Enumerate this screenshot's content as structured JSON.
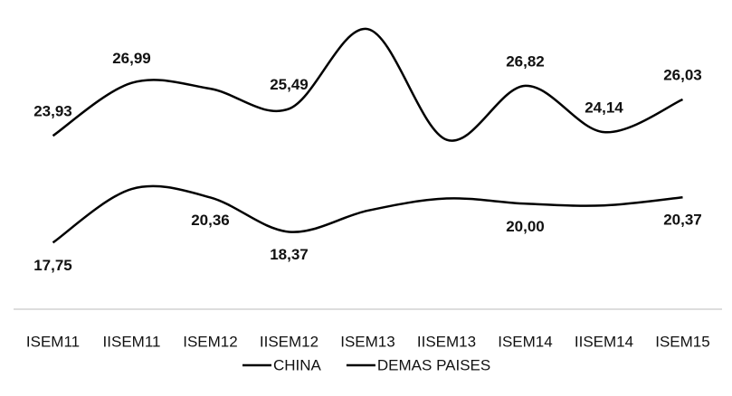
{
  "chart_data": {
    "type": "line",
    "categories": [
      "ISEM11",
      "IISEM11",
      "ISEM12",
      "IISEM12",
      "ISEM13",
      "IISEM13",
      "ISEM14",
      "IISEM14",
      "ISEM15"
    ],
    "series": [
      {
        "name": "CHINA",
        "color": "#000000",
        "values": [
          23.93,
          26.99,
          26.65,
          25.49,
          30.1,
          23.7,
          26.82,
          24.14,
          26.03
        ],
        "value_labels": [
          "23,93",
          "26,99",
          null,
          "25,49",
          null,
          null,
          "26,82",
          "24,14",
          "26,03"
        ]
      },
      {
        "name": "DEMAS PAISES",
        "color": "#000000",
        "values": [
          17.75,
          20.85,
          20.36,
          18.37,
          19.6,
          20.3,
          20.0,
          19.9,
          20.37
        ],
        "value_labels": [
          "17,75",
          null,
          "20,36",
          "18,37",
          null,
          null,
          "20,00",
          null,
          "20,37"
        ]
      }
    ],
    "ylim": [
      14,
      31
    ],
    "legend": "bottom"
  }
}
